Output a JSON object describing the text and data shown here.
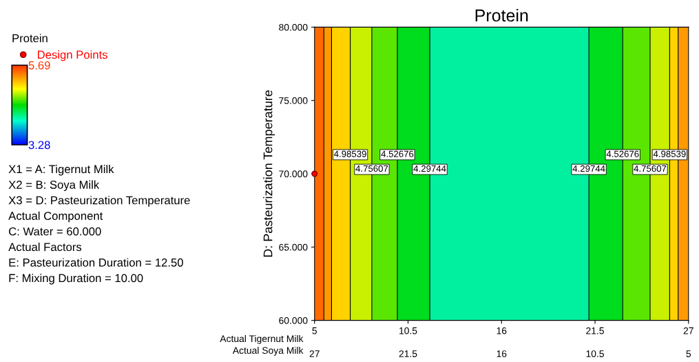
{
  "chart_data": {
    "type": "scatter",
    "title": "Protein",
    "xlabel": "Actual Tigernut Milk",
    "x2label": "Actual Soya Milk",
    "ylabel": "D: Pasteurization Temperature",
    "legend_title": "Protein",
    "legend": "left",
    "bands": [
      {
        "axis": "x",
        "from": 5,
        "to": 5.55,
        "color": "#ff6a00"
      },
      {
        "axis": "x",
        "from": 5.55,
        "to": 6.0,
        "color": "#ff9a00"
      },
      {
        "axis": "x",
        "from": 6.0,
        "to": 7.1,
        "color": "#ffd200"
      },
      {
        "axis": "x",
        "from": 7.1,
        "to": 8.37,
        "color": "#c8f000"
      },
      {
        "axis": "x",
        "from": 8.37,
        "to": 9.87,
        "color": "#5ae600"
      },
      {
        "axis": "x",
        "from": 9.87,
        "to": 11.78,
        "color": "#00dc1e"
      },
      {
        "axis": "x",
        "from": 11.78,
        "to": 21.14,
        "color": "#00f0a0"
      },
      {
        "axis": "x",
        "from": 21.14,
        "to": 23.13,
        "color": "#00dc1e"
      },
      {
        "axis": "x",
        "from": 23.13,
        "to": 24.74,
        "color": "#5ae600"
      },
      {
        "axis": "x",
        "from": 24.74,
        "to": 25.89,
        "color": "#c8f000"
      },
      {
        "axis": "x",
        "from": 25.89,
        "to": 26.39,
        "color": "#ffd200"
      },
      {
        "axis": "x",
        "from": 26.39,
        "to": 27,
        "color": "#ff9a00"
      }
    ],
    "clim": [
      3.28,
      5.69
    ],
    "cticks": [
      3.28,
      5.69
    ],
    "xlim": [
      5,
      27
    ],
    "xticks": [
      5,
      10.5,
      16,
      21.5,
      27
    ],
    "x2lim": [
      27,
      5
    ],
    "x2ticks": [
      27,
      21.5,
      16,
      10.5,
      5
    ],
    "ylim": [
      60,
      80
    ],
    "yticks": [
      {
        "value": 60,
        "label": "60.000"
      },
      {
        "value": 65,
        "label": "65.000"
      },
      {
        "value": 70,
        "label": "70.000"
      },
      {
        "value": 75,
        "label": "75.000"
      },
      {
        "value": 80,
        "label": "80.000"
      }
    ],
    "series": [
      {
        "name": "Design Points",
        "type": "scatter",
        "color": "#ff0000",
        "x": [
          5
        ],
        "values": [
          70
        ]
      }
    ],
    "ref_lines": [
      {
        "axis": "x",
        "value": 5.55
      },
      {
        "axis": "x",
        "value": 6.0
      },
      {
        "axis": "x",
        "value": 7.1
      },
      {
        "axis": "x",
        "value": 8.37
      },
      {
        "axis": "x",
        "value": 9.87
      },
      {
        "axis": "x",
        "value": 11.78
      },
      {
        "axis": "x",
        "value": 21.14
      },
      {
        "axis": "x",
        "value": 23.13
      },
      {
        "axis": "x",
        "value": 24.74
      },
      {
        "axis": "x",
        "value": 25.89
      },
      {
        "axis": "x",
        "value": 26.39
      }
    ],
    "annotations": [
      {
        "text": "4.98539",
        "x": 7.1,
        "y": 71.3
      },
      {
        "text": "4.75607",
        "x": 8.37,
        "y": 70.3
      },
      {
        "text": "4.52676",
        "x": 9.87,
        "y": 71.3
      },
      {
        "text": "4.29744",
        "x": 11.78,
        "y": 70.3
      },
      {
        "text": "4.29744",
        "x": 21.14,
        "y": 70.3
      },
      {
        "text": "4.52676",
        "x": 23.13,
        "y": 71.3
      },
      {
        "text": "4.75607",
        "x": 24.74,
        "y": 70.3
      },
      {
        "text": "4.98539",
        "x": 25.89,
        "y": 71.3
      },
      "X1 = A: Tigernut Milk",
      "X2 = B: Soya Milk",
      "X3 = D: Pasteurization Temperature",
      "Actual Component",
      "C: Water = 60.000",
      "Actual Factors",
      "E: Pasteurization Duration = 12.50",
      "F: Mixing Duration = 10.00"
    ]
  }
}
